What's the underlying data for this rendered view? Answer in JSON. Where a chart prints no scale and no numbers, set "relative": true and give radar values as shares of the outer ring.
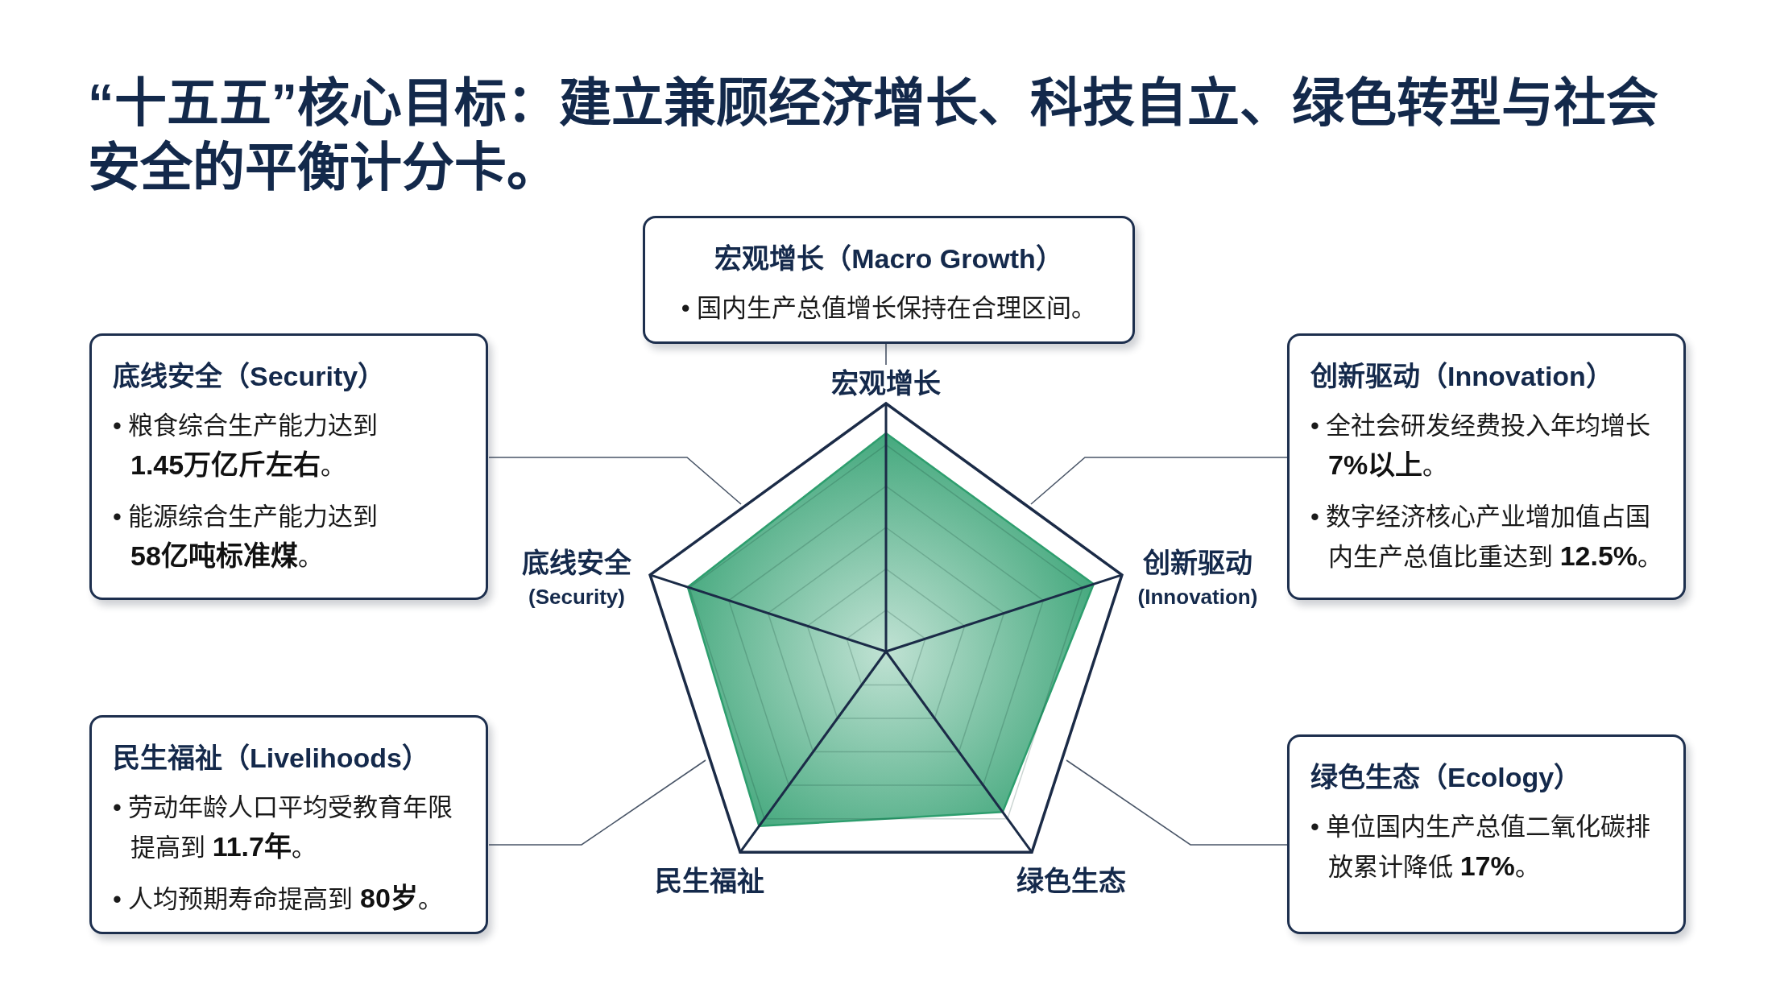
{
  "chart_data": {
    "type": "radar",
    "title": "“十五五”核心目标：建立兼顾经济增长、科技自立、绿色转型与社会安全的平衡计分卡。",
    "categories": [
      "宏观增长",
      "创新驱动\n(Innovation)",
      "绿色生态",
      "民生福祉",
      "底线安全\n(Security)"
    ],
    "relative": true,
    "series": [
      {
        "color": "#2e9e6e",
        "values": [
          0.88,
          0.88,
          0.8,
          0.87,
          0.84
        ]
      }
    ],
    "grid": true,
    "annotations": [
      "宏观增长（Macro Growth）\n• 国内生产总值增长保持在合理区间。",
      "创新驱动（Innovation）\n• 全社会研发经费投入年均增长7%以上。\n• 数字经济核心产业增加值占国内生产总值比重达到 12.5%。",
      "绿色生态（Ecology）\n• 单位国内生产总值二氧化碳排放累计降低 17%。",
      "民生福祉（Livelihoods）\n• 劳动年龄人口平均受教育年限提高到 11.7年。\n• 人均预期寿命提高到 80岁。",
      "底线安全（Security）\n• 粮食综合生产能力达到1.45万亿斤左右。\n• 能源综合生产能力达到58亿吨标准煤。"
    ]
  }
}
